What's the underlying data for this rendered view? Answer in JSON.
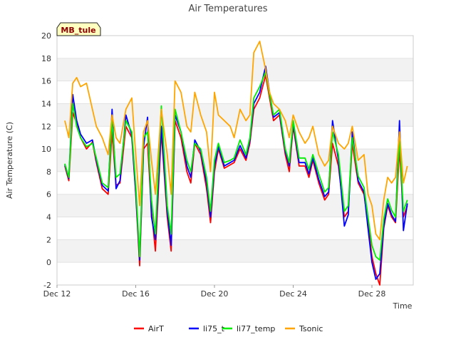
{
  "chart_data": {
    "type": "line",
    "title": "Air Temperatures",
    "xlabel": "Time",
    "ylabel": "Air Temperature (C)",
    "ylim": [
      -2,
      20
    ],
    "yticks": [
      -2,
      0,
      2,
      4,
      6,
      8,
      10,
      12,
      14,
      16,
      18,
      20
    ],
    "xlim": [
      12,
      30.1
    ],
    "xticks": [
      {
        "value": 12,
        "label": "Dec 12"
      },
      {
        "value": 16,
        "label": "Dec 16"
      },
      {
        "value": 20,
        "label": "Dec 20"
      },
      {
        "value": 24,
        "label": "Dec 24"
      },
      {
        "value": 28,
        "label": "Dec 28"
      }
    ],
    "grid": true,
    "legend_position": "bottom",
    "site_tag": "MB_tule",
    "x": [
      12.4,
      12.6,
      12.8,
      13.0,
      13.2,
      13.5,
      13.8,
      14.0,
      14.3,
      14.6,
      14.8,
      15.0,
      15.2,
      15.5,
      15.8,
      16.0,
      16.2,
      16.4,
      16.6,
      16.8,
      17.0,
      17.3,
      17.6,
      17.8,
      18.0,
      18.3,
      18.6,
      18.8,
      19.0,
      19.3,
      19.6,
      19.8,
      20.0,
      20.2,
      20.5,
      20.8,
      21.0,
      21.3,
      21.6,
      21.8,
      22.0,
      22.3,
      22.6,
      22.8,
      23.0,
      23.3,
      23.6,
      23.8,
      24.0,
      24.3,
      24.6,
      24.8,
      25.0,
      25.3,
      25.6,
      25.8,
      26.0,
      26.3,
      26.6,
      26.8,
      27.0,
      27.3,
      27.6,
      27.8,
      28.0,
      28.2,
      28.4,
      28.6,
      28.8,
      29.0,
      29.2,
      29.4,
      29.6,
      29.8
    ],
    "series": [
      {
        "name": "AirT",
        "color": "#ff0000",
        "values": [
          8.5,
          7.2,
          13.2,
          12.3,
          11.0,
          10.0,
          10.6,
          8.8,
          6.5,
          6.0,
          11.5,
          6.8,
          7.0,
          12.0,
          11.0,
          6.0,
          -0.3,
          10.0,
          10.5,
          4.5,
          1.0,
          11.5,
          4.0,
          1.0,
          12.5,
          11.0,
          8.0,
          7.0,
          10.5,
          9.5,
          6.5,
          3.5,
          8.0,
          10.0,
          8.3,
          8.6,
          8.8,
          10.0,
          9.0,
          10.5,
          13.5,
          14.5,
          16.5,
          14.5,
          12.5,
          13.0,
          9.5,
          8.0,
          12.0,
          8.5,
          8.5,
          7.5,
          9.0,
          7.0,
          5.5,
          6.0,
          10.5,
          8.5,
          4.0,
          4.5,
          10.5,
          7.0,
          6.0,
          3.5,
          0.5,
          -1.0,
          -2.0,
          3.0,
          5.0,
          4.0,
          3.5,
          10.0,
          4.0,
          5.0
        ]
      },
      {
        "name": "li75_t",
        "color": "#0000ff",
        "values": [
          8.6,
          7.4,
          14.8,
          12.5,
          11.3,
          10.5,
          10.8,
          9.0,
          6.8,
          6.3,
          13.5,
          6.5,
          7.2,
          13.0,
          11.2,
          6.2,
          0.2,
          10.2,
          12.8,
          4.0,
          2.0,
          12.0,
          4.5,
          1.5,
          13.0,
          11.5,
          8.5,
          7.5,
          10.8,
          9.8,
          7.0,
          4.0,
          8.5,
          10.2,
          8.5,
          8.8,
          9.0,
          10.3,
          9.2,
          10.8,
          14.0,
          15.0,
          17.3,
          15.0,
          12.8,
          13.2,
          9.8,
          8.5,
          12.3,
          8.8,
          8.8,
          7.8,
          9.2,
          7.3,
          5.8,
          6.2,
          12.5,
          9.0,
          3.2,
          4.2,
          11.5,
          7.2,
          6.2,
          3.0,
          0.0,
          -1.5,
          -1.0,
          3.2,
          5.2,
          4.2,
          3.6,
          12.5,
          2.8,
          5.2
        ]
      },
      {
        "name": "li77_temp",
        "color": "#00ee00",
        "values": [
          8.7,
          7.5,
          14.0,
          12.0,
          11.0,
          10.2,
          10.5,
          9.2,
          7.0,
          6.6,
          12.5,
          7.5,
          7.8,
          12.5,
          11.5,
          6.8,
          0.5,
          11.0,
          11.5,
          5.5,
          2.5,
          13.8,
          5.0,
          2.5,
          13.5,
          11.5,
          9.0,
          8.0,
          10.5,
          10.0,
          7.5,
          4.5,
          9.0,
          10.5,
          8.8,
          9.0,
          9.2,
          10.8,
          9.5,
          11.0,
          14.5,
          15.5,
          16.8,
          14.8,
          13.0,
          13.5,
          10.0,
          8.8,
          12.5,
          9.2,
          9.2,
          8.2,
          9.5,
          7.8,
          6.2,
          6.6,
          11.5,
          9.5,
          4.5,
          5.0,
          11.0,
          7.6,
          6.6,
          4.0,
          1.5,
          0.5,
          0.2,
          3.8,
          5.6,
          4.6,
          4.0,
          11.0,
          4.5,
          5.5
        ]
      },
      {
        "name": "Tsonic",
        "color": "#ffa500",
        "values": [
          12.5,
          11.0,
          15.8,
          16.3,
          15.5,
          15.8,
          13.5,
          12.0,
          11.0,
          9.5,
          13.0,
          11.0,
          10.5,
          13.5,
          14.5,
          9.5,
          5.0,
          11.5,
          12.5,
          9.0,
          6.0,
          13.5,
          9.5,
          6.0,
          16.0,
          15.0,
          12.0,
          11.5,
          15.0,
          13.0,
          11.5,
          8.0,
          15.0,
          13.0,
          12.5,
          12.0,
          11.0,
          13.5,
          12.5,
          13.0,
          18.5,
          19.5,
          17.0,
          15.0,
          14.0,
          13.5,
          12.5,
          11.0,
          13.0,
          11.5,
          10.5,
          11.0,
          12.0,
          9.5,
          8.5,
          9.0,
          12.0,
          10.5,
          10.0,
          10.5,
          12.0,
          9.0,
          9.5,
          6.0,
          5.0,
          2.5,
          2.0,
          5.5,
          7.5,
          7.0,
          7.5,
          11.5,
          7.0,
          8.5
        ]
      }
    ]
  }
}
